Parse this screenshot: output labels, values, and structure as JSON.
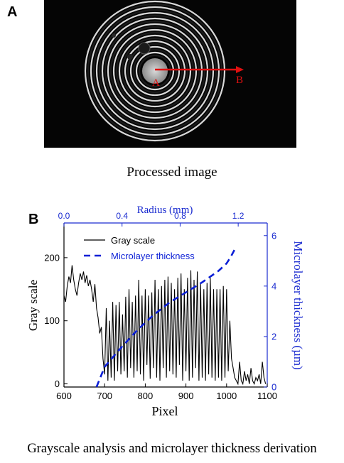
{
  "panel_a": {
    "label": "A",
    "marker_start": "A",
    "marker_end": "B",
    "caption": "Processed image"
  },
  "panel_b": {
    "label": "B",
    "caption": "Grayscale analysis and microlayer thickness derivation"
  },
  "colors": {
    "gray_series": "#000000",
    "thickness_series": "#0b1fd6",
    "arrow": "#e01010",
    "right_axis": "#1a2bd0",
    "top_axis": "#1a2bd0"
  },
  "chart_data": {
    "type": "line",
    "xlabel": "Pixel",
    "ylabel": "Gray scale",
    "x2label": "Radius (mm)",
    "y2label": "Microlayer thickness (µm)",
    "xlim": [
      600,
      1100
    ],
    "ylim": [
      -5,
      255
    ],
    "x2lim": [
      0.0,
      1.4
    ],
    "y2lim": [
      0,
      6.5
    ],
    "xticks": [
      "600",
      "700",
      "800",
      "900",
      "1000",
      "1100"
    ],
    "yticks": [
      "0",
      "100",
      "200"
    ],
    "x2ticks": [
      "0.0",
      "0.4",
      "0.8",
      "1.2"
    ],
    "y2ticks": [
      "0",
      "2",
      "4",
      "6"
    ],
    "legend_position": "top-right",
    "series": [
      {
        "name": "Gray scale",
        "style": "solid",
        "axis": "left",
        "x": [
          600,
          604,
          608,
          612,
          616,
          620,
          624,
          628,
          632,
          636,
          640,
          644,
          648,
          652,
          656,
          660,
          664,
          668,
          672,
          676,
          680,
          684,
          688,
          692,
          696,
          700,
          704,
          708,
          712,
          716,
          720,
          724,
          728,
          732,
          736,
          740,
          744,
          748,
          752,
          756,
          760,
          764,
          768,
          772,
          776,
          780,
          784,
          788,
          792,
          796,
          800,
          804,
          808,
          812,
          816,
          820,
          824,
          828,
          832,
          836,
          840,
          844,
          848,
          852,
          856,
          860,
          864,
          868,
          872,
          876,
          880,
          884,
          888,
          892,
          896,
          900,
          904,
          908,
          912,
          916,
          920,
          924,
          928,
          932,
          936,
          940,
          944,
          948,
          952,
          956,
          960,
          964,
          968,
          972,
          976,
          980,
          984,
          988,
          992,
          996,
          1000,
          1004,
          1008,
          1012,
          1016,
          1020,
          1024,
          1028,
          1032,
          1036,
          1040,
          1044,
          1048,
          1052,
          1056,
          1060,
          1064,
          1068,
          1072,
          1076,
          1080,
          1084,
          1088,
          1092,
          1096
        ],
        "y": [
          140,
          130,
          155,
          170,
          160,
          188,
          165,
          150,
          140,
          160,
          175,
          165,
          178,
          160,
          172,
          155,
          165,
          150,
          130,
          158,
          120,
          105,
          80,
          90,
          40,
          15,
          120,
          5,
          100,
          10,
          130,
          5,
          125,
          20,
          130,
          15,
          110,
          20,
          138,
          10,
          150,
          25,
          130,
          10,
          140,
          20,
          165,
          15,
          140,
          5,
          150,
          30,
          140,
          8,
          145,
          25,
          165,
          10,
          150,
          5,
          155,
          25,
          165,
          10,
          170,
          20,
          160,
          15,
          150,
          10,
          168,
          30,
          175,
          5,
          150,
          20,
          168,
          5,
          180,
          10,
          165,
          25,
          178,
          5,
          160,
          10,
          150,
          5,
          160,
          15,
          168,
          10,
          150,
          5,
          150,
          10,
          150,
          5,
          155,
          10,
          150,
          20,
          100,
          40,
          25,
          10,
          5,
          0,
          35,
          5,
          0,
          20,
          5,
          15,
          0,
          25,
          5,
          0,
          10,
          5,
          15,
          0,
          35,
          10,
          0
        ]
      },
      {
        "name": "Microlayer thickness",
        "style": "dashed",
        "axis": "right",
        "x": [
          680,
          700,
          740,
          780,
          820,
          860,
          900,
          940,
          980,
          1000,
          1010,
          1020
        ],
        "y": [
          0.0,
          0.8,
          1.55,
          2.25,
          2.85,
          3.35,
          3.75,
          4.15,
          4.6,
          4.9,
          5.15,
          5.45
        ]
      }
    ]
  }
}
